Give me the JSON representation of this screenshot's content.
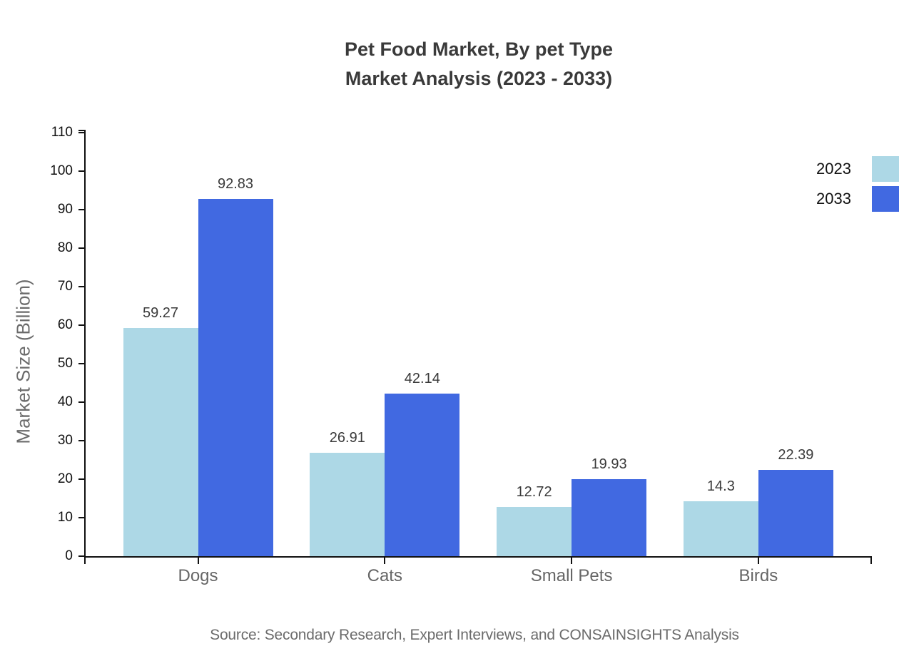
{
  "chart": {
    "title_line1": "Pet Food Market, By pet Type",
    "title_line2": "Market Analysis (2023 - 2033)",
    "source": "Source: Secondary Research, Expert Interviews, and CONSAINSIGHTS Analysis"
  },
  "chart_data": {
    "type": "bar",
    "title": "Pet Food Market, By pet Type — Market Analysis (2023 - 2033)",
    "categories": [
      "Dogs",
      "Cats",
      "Small Pets",
      "Birds"
    ],
    "series": [
      {
        "name": "2023",
        "color": "#ADD8E6",
        "values": [
          59.27,
          26.91,
          12.72,
          14.3
        ]
      },
      {
        "name": "2033",
        "color": "#4169E1",
        "values": [
          92.83,
          42.14,
          19.93,
          22.39
        ]
      }
    ],
    "xlabel": "",
    "ylabel": "Market Size (Billion)",
    "ylim": [
      0,
      110
    ],
    "ytick_step": 10,
    "grid": false,
    "legend_position": "top-right",
    "value_labels": true,
    "axis_color": "#111111",
    "tick_label_color": "#111111",
    "category_label_color": "#666666",
    "value_label_color": "#3a3a3a",
    "title_color": "#3a3a3a"
  }
}
